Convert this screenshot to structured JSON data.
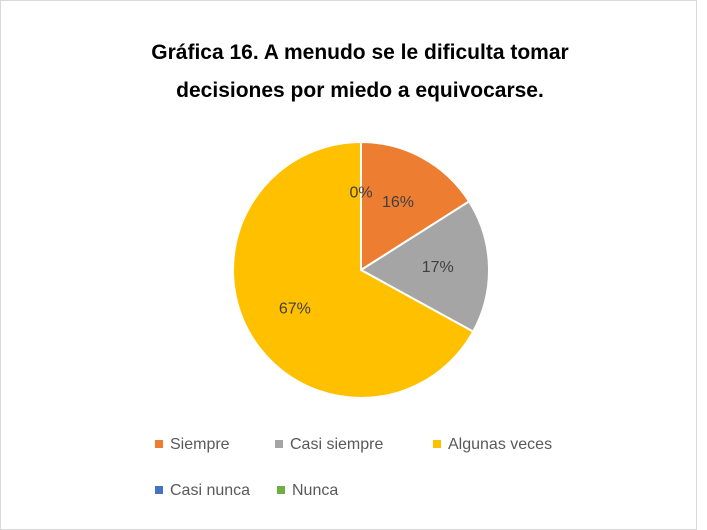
{
  "chart_data": {
    "type": "pie",
    "title": "Gráfica 16. A menudo se le dificulta tomar decisiones por miedo a equivocarse.",
    "categories": [
      "Siempre",
      "Casi siempre",
      "Algunas veces",
      "Casi nunca",
      "Nunca"
    ],
    "values": [
      16,
      17,
      67,
      0,
      0
    ],
    "value_labels": [
      "16%",
      "17%",
      "67%",
      "0%",
      null
    ],
    "colors": [
      "#ed7d31",
      "#a5a5a5",
      "#ffc000",
      "#4472c4",
      "#70ad47"
    ],
    "legend": "bottom"
  }
}
